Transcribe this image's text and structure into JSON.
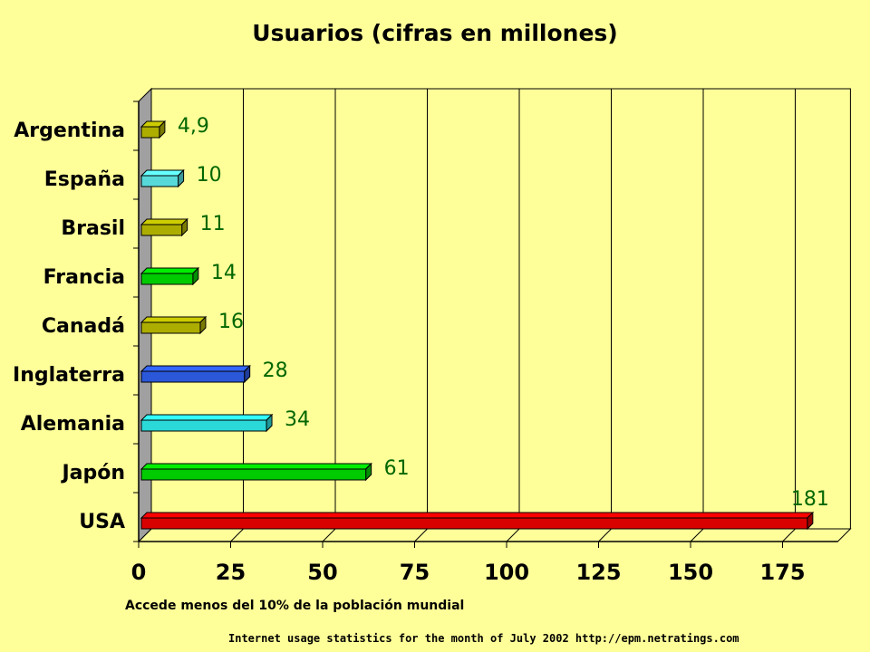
{
  "chart_data": {
    "type": "bar",
    "orientation": "horizontal",
    "title": "Usuarios (cifras en millones)",
    "categories": [
      "Argentina",
      "España",
      "Brasil",
      "Francia",
      "Canadá",
      "Inglaterra",
      "Alemania",
      "Japón",
      "USA"
    ],
    "values": [
      4.9,
      10,
      11,
      14,
      16,
      28,
      34,
      61,
      181
    ],
    "value_labels": [
      "4,9",
      "10",
      "11",
      "14",
      "16",
      "28",
      "34",
      "61",
      "181"
    ],
    "bar_colors": [
      "#cccc00",
      "#66ffff",
      "#cccc00",
      "#00ee00",
      "#cccc00",
      "#3366ff",
      "#33ffff",
      "#00ee00",
      "#ff0000"
    ],
    "xlim": [
      0,
      190
    ],
    "xticks": [
      0,
      25,
      50,
      75,
      100,
      125,
      150,
      175
    ],
    "grid": "vertical",
    "label_color": "#006600"
  },
  "note": "Accede menos del 10% de la población mundial",
  "source": "Internet usage statistics for the month of July 2002 http://epm.netratings.com"
}
